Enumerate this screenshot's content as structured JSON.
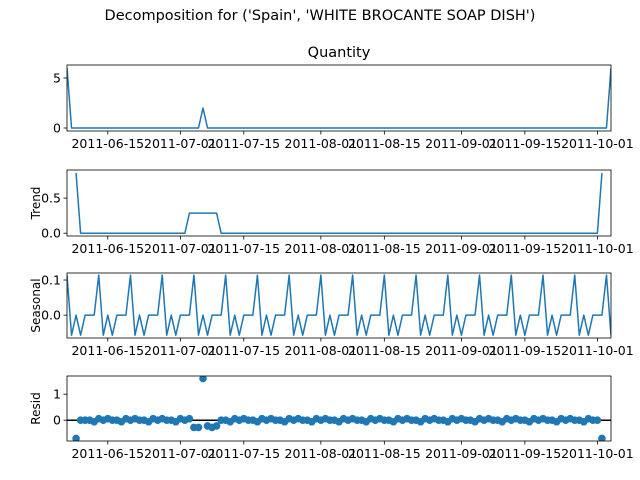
{
  "suptitle": "Decomposition for ('Spain', 'WHITE BROCANTE SOAP DISH')",
  "colors": {
    "line": "#1f77b4",
    "axes": "#000000",
    "background": "#ffffff"
  },
  "chart_data": [
    {
      "type": "line",
      "title": "Quantity",
      "ylabel": "",
      "x_start": "2011-06-06",
      "x_end": "2011-10-04",
      "xticks": [
        "2011-06-15",
        "2011-07-01",
        "2011-07-15",
        "2011-08-01",
        "2011-08-15",
        "2011-09-01",
        "2011-09-15",
        "2011-10-01"
      ],
      "yticks": [
        0,
        5
      ],
      "ylim": [
        -0.3,
        6.3
      ],
      "series": [
        {
          "points": [
            [
              "2011-06-06",
              6
            ],
            [
              "2011-06-07",
              0
            ],
            [
              "2011-07-05",
              0
            ],
            [
              "2011-07-06",
              2
            ],
            [
              "2011-07-07",
              0
            ],
            [
              "2011-10-03",
              0
            ],
            [
              "2011-10-04",
              6
            ]
          ]
        }
      ]
    },
    {
      "type": "line",
      "title": "",
      "ylabel": "Trend",
      "x_start": "2011-06-06",
      "x_end": "2011-10-04",
      "xticks": [
        "2011-06-15",
        "2011-07-01",
        "2011-07-15",
        "2011-08-01",
        "2011-08-15",
        "2011-09-01",
        "2011-09-15",
        "2011-10-01"
      ],
      "yticks": [
        0.0,
        0.5
      ],
      "ylim": [
        -0.04,
        0.9
      ],
      "series": [
        {
          "points": [
            [
              "2011-06-08",
              0.857
            ],
            [
              "2011-06-09",
              0
            ],
            [
              "2011-07-02",
              0
            ],
            [
              "2011-07-03",
              0.286
            ],
            [
              "2011-07-09",
              0.286
            ],
            [
              "2011-07-10",
              0
            ],
            [
              "2011-10-01",
              0
            ],
            [
              "2011-10-02",
              0.857
            ]
          ]
        }
      ]
    },
    {
      "type": "line",
      "title": "",
      "ylabel": "Seasonal",
      "x_start": "2011-06-06",
      "x_end": "2011-10-04",
      "xticks": [
        "2011-06-15",
        "2011-07-01",
        "2011-07-15",
        "2011-08-01",
        "2011-08-15",
        "2011-09-01",
        "2011-09-15",
        "2011-10-01"
      ],
      "yticks": [
        0.0,
        0.1
      ],
      "ylim": [
        -0.065,
        0.12
      ],
      "pattern": [
        0.114,
        -0.057,
        0.0,
        -0.057,
        0.0,
        0.0,
        0.0
      ],
      "pattern_start": "2011-06-06"
    },
    {
      "type": "scatter",
      "title": "",
      "ylabel": "Resid",
      "x_start": "2011-06-06",
      "x_end": "2011-10-04",
      "xticks": [
        "2011-06-15",
        "2011-07-01",
        "2011-07-15",
        "2011-08-01",
        "2011-08-15",
        "2011-09-01",
        "2011-09-15",
        "2011-10-01"
      ],
      "yticks": [
        0,
        1
      ],
      "ylim": [
        -0.8,
        1.7
      ],
      "zero_line": true,
      "points": [
        [
          "2011-06-08",
          -0.7
        ],
        [
          "2011-06-09",
          0.0
        ],
        [
          "2011-06-10",
          0.0
        ],
        [
          "2011-06-11",
          0.0
        ],
        [
          "2011-06-12",
          -0.06
        ],
        [
          "2011-06-13",
          0.06
        ],
        [
          "2011-06-14",
          0.0
        ],
        [
          "2011-06-15",
          0.06
        ],
        [
          "2011-06-16",
          0.0
        ],
        [
          "2011-06-17",
          0.0
        ],
        [
          "2011-06-18",
          -0.06
        ],
        [
          "2011-06-19",
          0.06
        ],
        [
          "2011-06-20",
          0.0
        ],
        [
          "2011-06-21",
          0.06
        ],
        [
          "2011-06-22",
          0.0
        ],
        [
          "2011-06-23",
          0.0
        ],
        [
          "2011-06-24",
          -0.06
        ],
        [
          "2011-06-25",
          0.06
        ],
        [
          "2011-06-26",
          0.0
        ],
        [
          "2011-06-27",
          0.06
        ],
        [
          "2011-06-28",
          0.0
        ],
        [
          "2011-06-29",
          0.0
        ],
        [
          "2011-06-30",
          -0.06
        ],
        [
          "2011-07-01",
          0.06
        ],
        [
          "2011-07-02",
          0.0
        ],
        [
          "2011-07-03",
          0.06
        ],
        [
          "2011-07-04",
          -0.28
        ],
        [
          "2011-07-05",
          -0.28
        ],
        [
          "2011-07-06",
          1.6
        ],
        [
          "2011-07-07",
          -0.22
        ],
        [
          "2011-07-08",
          -0.28
        ],
        [
          "2011-07-09",
          -0.22
        ],
        [
          "2011-07-10",
          0.0
        ],
        [
          "2011-07-11",
          0.0
        ],
        [
          "2011-07-12",
          -0.06
        ],
        [
          "2011-07-13",
          0.06
        ],
        [
          "2011-07-14",
          0.0
        ],
        [
          "2011-07-15",
          0.06
        ],
        [
          "2011-07-16",
          0.0
        ],
        [
          "2011-07-17",
          0.0
        ],
        [
          "2011-07-18",
          -0.06
        ],
        [
          "2011-07-19",
          0.06
        ],
        [
          "2011-07-20",
          0.0
        ],
        [
          "2011-07-21",
          0.06
        ],
        [
          "2011-07-22",
          0.0
        ],
        [
          "2011-07-23",
          0.0
        ],
        [
          "2011-07-24",
          -0.06
        ],
        [
          "2011-07-25",
          0.06
        ],
        [
          "2011-07-26",
          0.0
        ],
        [
          "2011-07-27",
          0.06
        ],
        [
          "2011-07-28",
          0.0
        ],
        [
          "2011-07-29",
          0.0
        ],
        [
          "2011-07-30",
          -0.06
        ],
        [
          "2011-07-31",
          0.06
        ],
        [
          "2011-08-01",
          0.0
        ],
        [
          "2011-08-02",
          0.06
        ],
        [
          "2011-08-03",
          0.0
        ],
        [
          "2011-08-04",
          0.0
        ],
        [
          "2011-08-05",
          -0.06
        ],
        [
          "2011-08-06",
          0.06
        ],
        [
          "2011-08-07",
          0.0
        ],
        [
          "2011-08-08",
          0.06
        ],
        [
          "2011-08-09",
          0.0
        ],
        [
          "2011-08-10",
          0.0
        ],
        [
          "2011-08-11",
          -0.06
        ],
        [
          "2011-08-12",
          0.06
        ],
        [
          "2011-08-13",
          0.0
        ],
        [
          "2011-08-14",
          0.06
        ],
        [
          "2011-08-15",
          0.0
        ],
        [
          "2011-08-16",
          0.0
        ],
        [
          "2011-08-17",
          -0.06
        ],
        [
          "2011-08-18",
          0.06
        ],
        [
          "2011-08-19",
          0.0
        ],
        [
          "2011-08-20",
          0.06
        ],
        [
          "2011-08-21",
          0.0
        ],
        [
          "2011-08-22",
          0.0
        ],
        [
          "2011-08-23",
          -0.06
        ],
        [
          "2011-08-24",
          0.06
        ],
        [
          "2011-08-25",
          0.0
        ],
        [
          "2011-08-26",
          0.06
        ],
        [
          "2011-08-27",
          0.0
        ],
        [
          "2011-08-28",
          0.0
        ],
        [
          "2011-08-29",
          -0.06
        ],
        [
          "2011-08-30",
          0.06
        ],
        [
          "2011-08-31",
          0.0
        ],
        [
          "2011-09-01",
          0.06
        ],
        [
          "2011-09-02",
          0.0
        ],
        [
          "2011-09-03",
          0.0
        ],
        [
          "2011-09-04",
          -0.06
        ],
        [
          "2011-09-05",
          0.06
        ],
        [
          "2011-09-06",
          0.0
        ],
        [
          "2011-09-07",
          0.06
        ],
        [
          "2011-09-08",
          0.0
        ],
        [
          "2011-09-09",
          0.0
        ],
        [
          "2011-09-10",
          -0.06
        ],
        [
          "2011-09-11",
          0.06
        ],
        [
          "2011-09-12",
          0.0
        ],
        [
          "2011-09-13",
          0.06
        ],
        [
          "2011-09-14",
          0.0
        ],
        [
          "2011-09-15",
          0.0
        ],
        [
          "2011-09-16",
          -0.06
        ],
        [
          "2011-09-17",
          0.06
        ],
        [
          "2011-09-18",
          0.0
        ],
        [
          "2011-09-19",
          0.06
        ],
        [
          "2011-09-20",
          0.0
        ],
        [
          "2011-09-21",
          0.0
        ],
        [
          "2011-09-22",
          -0.06
        ],
        [
          "2011-09-23",
          0.06
        ],
        [
          "2011-09-24",
          0.0
        ],
        [
          "2011-09-25",
          0.06
        ],
        [
          "2011-09-26",
          0.0
        ],
        [
          "2011-09-27",
          0.0
        ],
        [
          "2011-09-28",
          -0.06
        ],
        [
          "2011-09-29",
          0.06
        ],
        [
          "2011-09-30",
          0.0
        ],
        [
          "2011-10-01",
          0.0
        ],
        [
          "2011-10-02",
          -0.7
        ]
      ]
    }
  ]
}
